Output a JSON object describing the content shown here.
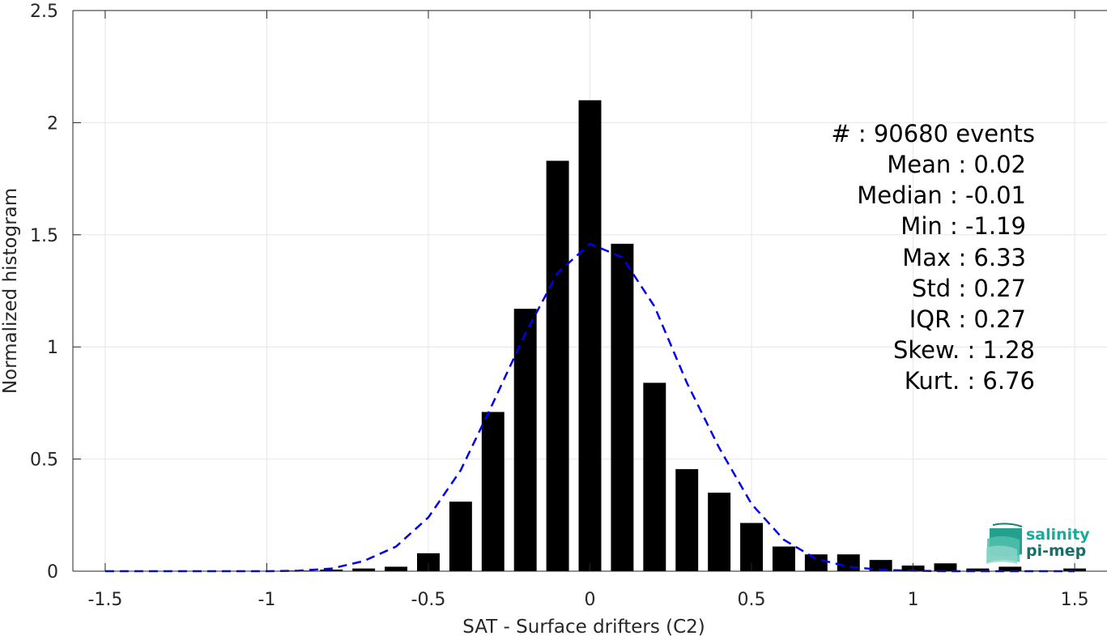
{
  "chart_data": {
    "type": "bar",
    "xlabel": "SAT - Surface drifters (C2)",
    "ylabel": "Normalized histogram",
    "xlim": [
      -1.6,
      1.6
    ],
    "ylim": [
      0,
      2.5
    ],
    "x_ticks": [
      -1.5,
      -1,
      -0.5,
      0,
      0.5,
      1,
      1.5
    ],
    "x_tick_labels": [
      "-1.5",
      "-1",
      "-0.5",
      "0",
      "0.5",
      "1",
      "1.5"
    ],
    "y_ticks": [
      0,
      0.5,
      1,
      1.5,
      2,
      2.5
    ],
    "y_tick_labels": [
      "0",
      "0.5",
      "1",
      "1.5",
      "2",
      "2.5"
    ],
    "grid": true,
    "bar_width": 0.07,
    "bar_color": "#000000",
    "bars": {
      "x": [
        -1.5,
        -1.4,
        -1.3,
        -1.2,
        -1.1,
        -1.0,
        -0.9,
        -0.8,
        -0.7,
        -0.6,
        -0.5,
        -0.4,
        -0.3,
        -0.2,
        -0.1,
        0.0,
        0.1,
        0.2,
        0.3,
        0.4,
        0.5,
        0.6,
        0.7,
        0.8,
        0.9,
        1.0,
        1.1,
        1.2,
        1.3,
        1.4,
        1.5
      ],
      "values": [
        0,
        0,
        0,
        0,
        0,
        0,
        0.003,
        0.007,
        0.012,
        0.02,
        0.08,
        0.31,
        0.71,
        1.17,
        1.83,
        2.1,
        1.46,
        0.84,
        0.455,
        0.35,
        0.215,
        0.11,
        0.075,
        0.075,
        0.05,
        0.025,
        0.035,
        0.012,
        0.02,
        0.003,
        0.012
      ]
    },
    "normal_fit": {
      "style": "dashed",
      "color": "#0000ee",
      "x": [
        -1.5,
        -1.4,
        -1.3,
        -1.2,
        -1.1,
        -1.0,
        -0.9,
        -0.8,
        -0.7,
        -0.6,
        -0.5,
        -0.4,
        -0.3,
        -0.2,
        -0.1,
        0.0,
        0.1,
        0.2,
        0.3,
        0.4,
        0.5,
        0.6,
        0.7,
        0.8,
        0.9,
        1.0,
        1.1,
        1.2,
        1.3,
        1.4,
        1.5
      ],
      "values": [
        0,
        0,
        0,
        0,
        0,
        0,
        0.002,
        0.012,
        0.045,
        0.11,
        0.24,
        0.45,
        0.75,
        1.06,
        1.33,
        1.46,
        1.4,
        1.18,
        0.84,
        0.55,
        0.3,
        0.14,
        0.055,
        0.02,
        0.006,
        0.002,
        0,
        0,
        0,
        0,
        0
      ]
    },
    "stats": [
      "#  : 90680 events",
      "Mean : 0.02",
      "Median : -0.01",
      "Min : -1.19",
      "Max : 6.33",
      "Std : 0.27",
      "IQR : 0.27",
      "Skew. : 1.28",
      "Kurt. : 6.76"
    ]
  },
  "logo": {
    "line1": "salinity",
    "line2": "pi-mep",
    "color1": "#1aa99a",
    "color2": "#176f6a"
  }
}
